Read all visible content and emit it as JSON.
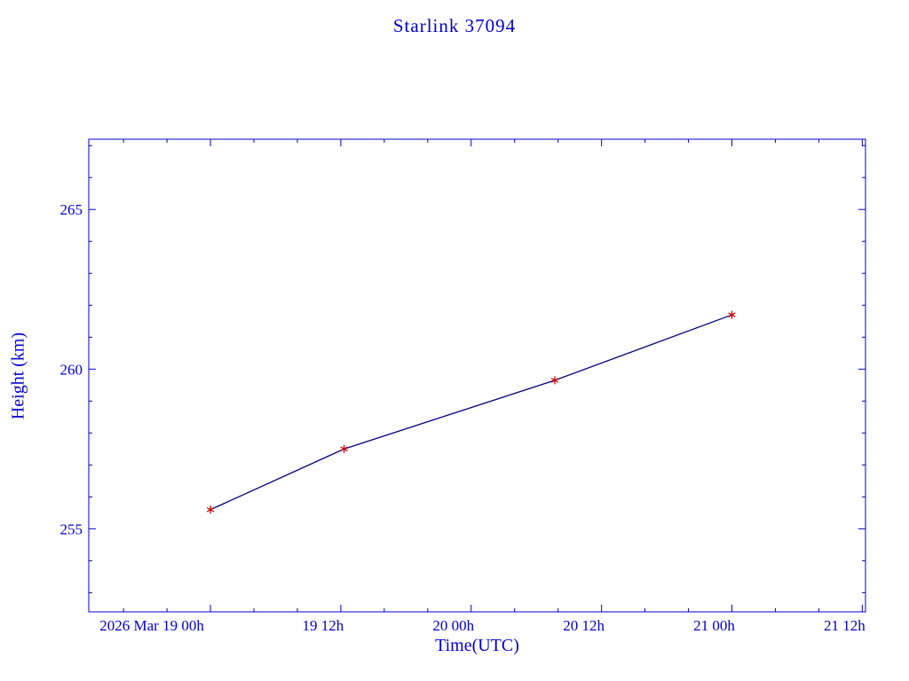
{
  "colors": {
    "axis": "#0000CC",
    "text": "#0000CC",
    "line": "#000080",
    "marker": "#CC0000",
    "background": "#FFFFFF"
  },
  "chart_data": {
    "type": "line",
    "title": "Starlink 37094",
    "xlabel": "Time(UTC)",
    "ylabel": "Height (km)",
    "x_unit": "hours since 2026 Mar 19 00:00 UTC",
    "x_hours": [
      0,
      12.3,
      31.7,
      48
    ],
    "y_height_km": [
      255.6,
      257.5,
      259.65,
      261.7
    ],
    "points": [
      {
        "time": "2026 Mar 19 00h",
        "height_km": 255.6
      },
      {
        "time": "2026 Mar 19 12h",
        "height_km": 257.5
      },
      {
        "time": "2026 Mar 20 08h",
        "height_km": 259.65
      },
      {
        "time": "2026 Mar 21 00h",
        "height_km": 261.7
      }
    ],
    "xlim_hours": [
      -11.2,
      60.3
    ],
    "ylim": [
      252.4,
      267.2
    ],
    "x_ticks": [
      {
        "value": 0,
        "label": "2026 Mar 19 00h",
        "dx": -66
      },
      {
        "value": 12,
        "label": "19 12h",
        "dx": -20
      },
      {
        "value": 24,
        "label": "20 00h",
        "dx": -20
      },
      {
        "value": 36,
        "label": "20 12h",
        "dx": -20
      },
      {
        "value": 48,
        "label": "21 00h",
        "dx": -20
      },
      {
        "value": 60,
        "label": "21 12h",
        "dx": -20
      }
    ],
    "x_minor_step_hours": 4,
    "y_ticks": [
      {
        "value": 255,
        "label": "255"
      },
      {
        "value": 260,
        "label": "260"
      },
      {
        "value": 265,
        "label": "265"
      }
    ],
    "y_minor_step": 1,
    "grid": false,
    "legend": null,
    "marker_style": "asterisk"
  }
}
